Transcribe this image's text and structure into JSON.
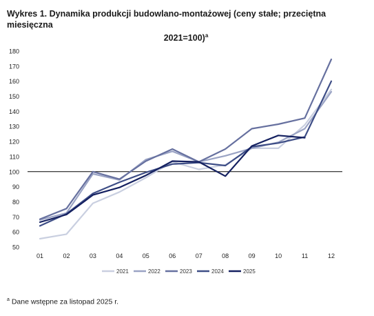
{
  "title_line1": "Wykres 1. Dynamika produkcji budowlano-montażowej (ceny stałe; przeciętna miesięczna",
  "title_line2": "2021=100)",
  "title_sup": "a",
  "footnote_sup": "a",
  "footnote_text": "Dane wstępne za listopad 2025 r.",
  "chart_data": {
    "type": "line",
    "categories": [
      "01",
      "02",
      "03",
      "04",
      "05",
      "06",
      "07",
      "08",
      "09",
      "10",
      "11",
      "12"
    ],
    "ylim": [
      50,
      180
    ],
    "yticks": [
      50,
      60,
      70,
      80,
      90,
      100,
      110,
      120,
      130,
      140,
      150,
      160,
      170,
      180
    ],
    "reference_line": 100,
    "grid": false,
    "legend_position": "bottom",
    "series": [
      {
        "name": "2021",
        "color": "#c9cfe0",
        "values": [
          55.5,
          58.5,
          79,
          86.5,
          96,
          106.5,
          101.5,
          104.5,
          115.5,
          115.5,
          131,
          154.5
        ]
      },
      {
        "name": "2022",
        "color": "#9aa3c4",
        "values": [
          68,
          72.5,
          98.5,
          94.5,
          108,
          113.5,
          106.5,
          110.5,
          115.5,
          119.5,
          128.5,
          153
        ]
      },
      {
        "name": "2023",
        "color": "#66709f",
        "values": [
          68.5,
          75.5,
          100,
          95,
          107,
          115,
          106.5,
          115,
          128.5,
          131.5,
          135.5,
          174.5
        ]
      },
      {
        "name": "2024",
        "color": "#3d4d86",
        "values": [
          64,
          72,
          85.5,
          93,
          99.5,
          105,
          106,
          104,
          116.5,
          119,
          123,
          160
        ]
      },
      {
        "name": "2025",
        "color": "#142060",
        "values": [
          66.5,
          71.5,
          84.5,
          89.5,
          97.5,
          107,
          106.5,
          97,
          117,
          124,
          122.5,
          null
        ]
      }
    ]
  }
}
